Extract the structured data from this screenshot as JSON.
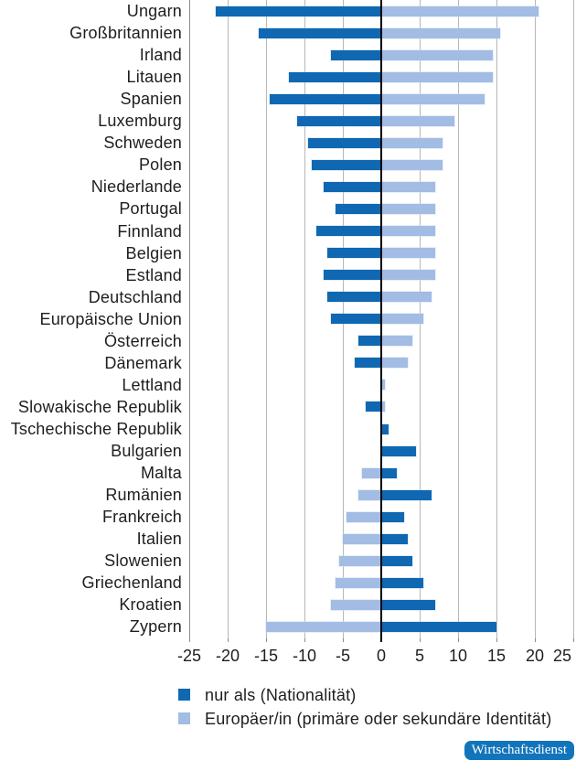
{
  "chart_data": {
    "type": "bar",
    "orientation": "horizontal-diverging",
    "categories": [
      "Ungarn",
      "Großbritannien",
      "Irland",
      "Litauen",
      "Spanien",
      "Luxemburg",
      "Schweden",
      "Polen",
      "Niederlande",
      "Portugal",
      "Finnland",
      "Belgien",
      "Estland",
      "Deutschland",
      "Europäische Union",
      "Österreich",
      "Dänemark",
      "Lettland",
      "Slowakische Republik",
      "Tschechische Republik",
      "Bulgarien",
      "Malta",
      "Rumänien",
      "Frankreich",
      "Italien",
      "Slowenien",
      "Griechenland",
      "Kroatien",
      "Zypern"
    ],
    "series": [
      {
        "name": "nur als (Nationalität)",
        "color": "#0f68b1",
        "values": [
          -21.5,
          -16,
          -6.5,
          -12,
          -14.5,
          -11,
          -9.5,
          -9,
          -7.5,
          -6,
          -8.5,
          -7,
          -7.5,
          -7,
          -6.5,
          -3,
          -3.5,
          0,
          -2,
          1,
          4.5,
          2,
          6.5,
          3,
          3.5,
          4,
          5.5,
          7,
          15
        ]
      },
      {
        "name": "Europäer/in (primäre oder sekundäre Identität)",
        "color": "#a2bce3",
        "values": [
          20.5,
          15.5,
          14.5,
          14.5,
          13.5,
          9.5,
          8,
          8,
          7,
          7,
          7,
          7,
          7,
          6.5,
          5.5,
          4,
          3.5,
          0.5,
          0.5,
          0,
          0,
          -2.5,
          -3,
          -4.5,
          -5,
          -5.5,
          -6,
          -6.5,
          -15
        ]
      }
    ],
    "xlim": [
      -25,
      25
    ],
    "xticks": [
      -25,
      -20,
      -15,
      -10,
      -5,
      0,
      5,
      10,
      15,
      20,
      25
    ],
    "grid": true,
    "gridline_color": "#b7b7b7",
    "zero_line_color": "#000000",
    "legend_position": "bottom-left"
  },
  "branding": {
    "label": "Wirtschaftsdienst",
    "color": "#1274ba",
    "text_color": "#ffffff"
  }
}
